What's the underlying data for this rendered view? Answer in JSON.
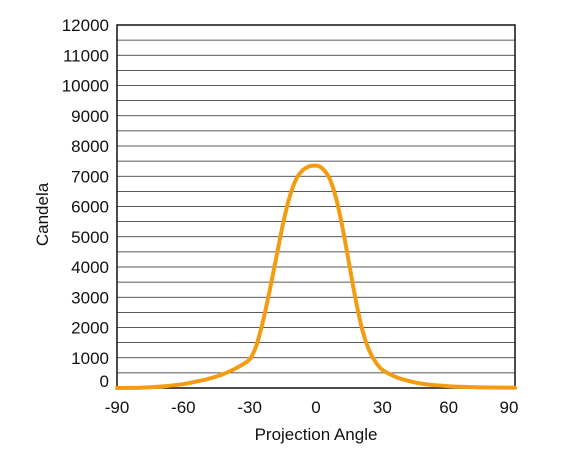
{
  "chart_data": {
    "type": "line",
    "xlabel": "Projection Angle",
    "ylabel": "Candela",
    "xlim": [
      -90,
      90
    ],
    "ylim": [
      0,
      12000
    ],
    "x_ticks": [
      -90,
      -60,
      -30,
      0,
      30,
      60,
      90
    ],
    "y_ticks": [
      0,
      1000,
      2000,
      3000,
      4000,
      5000,
      6000,
      7000,
      8000,
      9000,
      10000,
      11000,
      12000
    ],
    "x_tick_labels": [
      "-90",
      "-60",
      "-30",
      "0",
      "30",
      "60",
      "90"
    ],
    "y_tick_labels": [
      "0",
      "1000",
      "2000",
      "3000",
      "4000",
      "5000",
      "6000",
      "7000",
      "8000",
      "9000",
      "10000",
      "11000",
      "12000"
    ],
    "grid": "horizontal",
    "series": [
      {
        "color": "#f39c12",
        "x": [
          -90,
          -80,
          -70,
          -60,
          -50,
          -45,
          -40,
          -35,
          -30,
          -27,
          -24,
          -21,
          -18,
          -15,
          -12,
          -9,
          -6,
          -3,
          -1,
          0,
          1,
          3,
          6,
          9,
          12,
          15,
          18,
          21,
          24,
          27,
          30,
          35,
          40,
          45,
          50,
          60,
          70,
          80,
          90
        ],
        "y": [
          0,
          10,
          50,
          130,
          280,
          380,
          520,
          700,
          950,
          1400,
          2200,
          3200,
          4300,
          5400,
          6300,
          6900,
          7200,
          7330,
          7350,
          7350,
          7340,
          7250,
          6950,
          6300,
          5300,
          4100,
          2900,
          1900,
          1250,
          850,
          600,
          400,
          270,
          180,
          120,
          60,
          30,
          15,
          10
        ]
      }
    ]
  }
}
